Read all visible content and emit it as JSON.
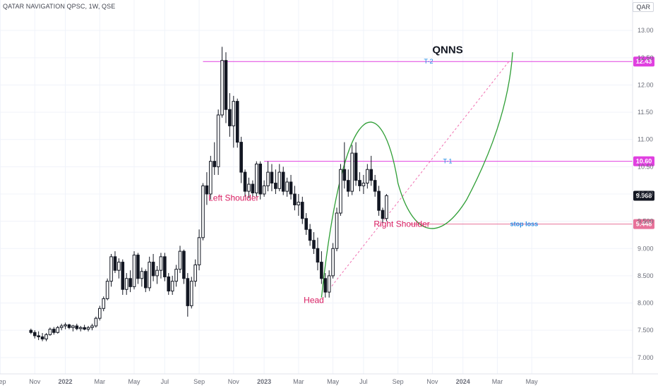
{
  "header": {
    "title": "QATAR NAVIGATION QPSC, 1W, QSE",
    "currency": "QAR"
  },
  "chart_data": {
    "type": "candlestick",
    "ylim": [
      6.7,
      13.3
    ],
    "y_ticks": [
      {
        "v": 7.0,
        "label": "7.000"
      },
      {
        "v": 7.5,
        "label": "7.500"
      },
      {
        "v": 8.0,
        "label": "8.000"
      },
      {
        "v": 8.5,
        "label": "8.500"
      },
      {
        "v": 9.0,
        "label": "9.000"
      },
      {
        "v": 9.5,
        "label": "9.500"
      },
      {
        "v": 10.0,
        "label": "10.00"
      },
      {
        "v": 10.5,
        "label": "10.50"
      },
      {
        "v": 11.0,
        "label": "11.00"
      },
      {
        "v": 11.5,
        "label": "11.50"
      },
      {
        "v": 12.0,
        "label": "12.00"
      },
      {
        "v": 12.5,
        "label": "12.50"
      },
      {
        "v": 13.0,
        "label": "13.00"
      }
    ],
    "x_ticks": [
      {
        "i": 0,
        "label": "Sep"
      },
      {
        "i": 9,
        "label": "Nov"
      },
      {
        "i": 17,
        "label": "2022"
      },
      {
        "i": 26,
        "label": "Mar"
      },
      {
        "i": 35,
        "label": "May"
      },
      {
        "i": 43,
        "label": "Jul"
      },
      {
        "i": 52,
        "label": "Sep"
      },
      {
        "i": 61,
        "label": "Nov"
      },
      {
        "i": 69,
        "label": "2023"
      },
      {
        "i": 78,
        "label": "Mar"
      },
      {
        "i": 87,
        "label": "May"
      },
      {
        "i": 95,
        "label": "Jul"
      },
      {
        "i": 104,
        "label": "Sep"
      },
      {
        "i": 113,
        "label": "Nov"
      },
      {
        "i": 121,
        "label": "2024"
      },
      {
        "i": 130,
        "label": "Mar"
      },
      {
        "i": 139,
        "label": "May"
      }
    ],
    "candles": [
      [
        7.5,
        7.53,
        7.43,
        7.46
      ],
      [
        7.46,
        7.5,
        7.35,
        7.4
      ],
      [
        7.4,
        7.48,
        7.32,
        7.38
      ],
      [
        7.38,
        7.45,
        7.3,
        7.34
      ],
      [
        7.34,
        7.45,
        7.3,
        7.42
      ],
      [
        7.42,
        7.55,
        7.4,
        7.52
      ],
      [
        7.52,
        7.56,
        7.42,
        7.46
      ],
      [
        7.46,
        7.58,
        7.44,
        7.55
      ],
      [
        7.55,
        7.62,
        7.5,
        7.58
      ],
      [
        7.58,
        7.64,
        7.52,
        7.6
      ],
      [
        7.6,
        7.62,
        7.52,
        7.55
      ],
      [
        7.55,
        7.6,
        7.48,
        7.58
      ],
      [
        7.58,
        7.62,
        7.5,
        7.53
      ],
      [
        7.53,
        7.58,
        7.48,
        7.55
      ],
      [
        7.55,
        7.6,
        7.5,
        7.52
      ],
      [
        7.52,
        7.58,
        7.48,
        7.55
      ],
      [
        7.55,
        7.62,
        7.5,
        7.58
      ],
      [
        7.58,
        7.75,
        7.55,
        7.72
      ],
      [
        7.72,
        7.95,
        7.68,
        7.9
      ],
      [
        7.9,
        8.12,
        7.85,
        8.08
      ],
      [
        8.08,
        8.45,
        8.05,
        8.4
      ],
      [
        8.4,
        8.9,
        8.3,
        8.85
      ],
      [
        8.85,
        8.95,
        8.55,
        8.6
      ],
      [
        8.6,
        8.82,
        8.45,
        8.75
      ],
      [
        8.75,
        8.8,
        8.15,
        8.25
      ],
      [
        8.25,
        8.55,
        8.15,
        8.45
      ],
      [
        8.45,
        8.6,
        8.2,
        8.3
      ],
      [
        8.3,
        8.95,
        8.25,
        8.88
      ],
      [
        8.88,
        8.92,
        8.35,
        8.45
      ],
      [
        8.45,
        8.65,
        8.3,
        8.58
      ],
      [
        8.58,
        8.62,
        8.2,
        8.28
      ],
      [
        8.28,
        8.85,
        8.22,
        8.75
      ],
      [
        8.75,
        8.9,
        8.4,
        8.5
      ],
      [
        8.5,
        8.68,
        8.35,
        8.6
      ],
      [
        8.6,
        8.92,
        8.45,
        8.85
      ],
      [
        8.85,
        8.92,
        8.4,
        8.48
      ],
      [
        8.48,
        8.55,
        8.15,
        8.22
      ],
      [
        8.22,
        8.5,
        8.15,
        8.4
      ],
      [
        8.4,
        8.7,
        8.3,
        8.62
      ],
      [
        8.62,
        9.05,
        8.55,
        8.95
      ],
      [
        8.95,
        8.98,
        8.35,
        8.45
      ],
      [
        8.45,
        8.55,
        7.75,
        7.95
      ],
      [
        7.95,
        8.48,
        7.9,
        8.4
      ],
      [
        8.4,
        8.8,
        8.3,
        8.7
      ],
      [
        8.7,
        9.35,
        8.6,
        9.2
      ],
      [
        9.2,
        10.2,
        9.15,
        10.15
      ],
      [
        10.15,
        10.4,
        9.8,
        10.0
      ],
      [
        10.0,
        10.7,
        9.9,
        10.6
      ],
      [
        10.6,
        10.95,
        10.35,
        10.5
      ],
      [
        10.5,
        11.55,
        10.35,
        11.45
      ],
      [
        11.45,
        12.7,
        11.4,
        12.45
      ],
      [
        12.45,
        12.6,
        11.3,
        11.55
      ],
      [
        11.55,
        11.85,
        11.05,
        11.25
      ],
      [
        11.25,
        11.8,
        10.85,
        11.7
      ],
      [
        11.7,
        11.75,
        10.85,
        10.95
      ],
      [
        10.95,
        11.05,
        10.2,
        10.4
      ],
      [
        10.4,
        10.45,
        9.95,
        10.05
      ],
      [
        10.05,
        10.3,
        9.92,
        10.18
      ],
      [
        10.18,
        10.25,
        9.95,
        10.02
      ],
      [
        10.02,
        10.6,
        9.95,
        10.55
      ],
      [
        10.55,
        10.6,
        9.9,
        10.0
      ],
      [
        10.0,
        10.25,
        9.95,
        10.15
      ],
      [
        10.15,
        10.6,
        10.05,
        10.4
      ],
      [
        10.4,
        10.55,
        10.05,
        10.2
      ],
      [
        10.2,
        10.45,
        10.0,
        10.1
      ],
      [
        10.1,
        10.55,
        10.05,
        10.4
      ],
      [
        10.4,
        10.5,
        9.98,
        10.05
      ],
      [
        10.05,
        10.3,
        9.95,
        10.22
      ],
      [
        10.22,
        10.35,
        9.9,
        10.0
      ],
      [
        10.0,
        10.15,
        9.7,
        9.8
      ],
      [
        9.8,
        10.0,
        9.6,
        9.85
      ],
      [
        9.85,
        9.95,
        9.45,
        9.55
      ],
      [
        9.55,
        9.65,
        9.25,
        9.35
      ],
      [
        9.35,
        9.45,
        9.05,
        9.15
      ],
      [
        9.15,
        9.3,
        8.9,
        9.0
      ],
      [
        9.0,
        9.2,
        8.6,
        8.75
      ],
      [
        8.75,
        8.95,
        8.35,
        8.45
      ],
      [
        8.45,
        8.55,
        8.1,
        8.2
      ],
      [
        8.2,
        8.6,
        8.1,
        8.5
      ],
      [
        8.5,
        9.1,
        8.45,
        9.0
      ],
      [
        9.0,
        9.75,
        8.95,
        9.65
      ],
      [
        9.65,
        10.55,
        9.6,
        10.45
      ],
      [
        10.45,
        10.95,
        10.1,
        10.25
      ],
      [
        10.25,
        10.45,
        9.95,
        10.05
      ],
      [
        10.05,
        10.9,
        9.98,
        10.75
      ],
      [
        10.75,
        10.95,
        10.15,
        10.25
      ],
      [
        10.25,
        10.4,
        10.05,
        10.15
      ],
      [
        10.15,
        10.35,
        10.0,
        10.2
      ],
      [
        10.2,
        10.55,
        10.1,
        10.45
      ],
      [
        10.45,
        10.7,
        10.15,
        10.25
      ],
      [
        10.25,
        10.35,
        9.95,
        10.05
      ],
      [
        10.05,
        10.15,
        9.6,
        9.7
      ],
      [
        9.7,
        9.75,
        9.45,
        9.55
      ],
      [
        9.55,
        10.0,
        9.5,
        9.97
      ]
    ],
    "x_index_offset": 8,
    "levels": [
      {
        "label": "T-2",
        "value": 12.43,
        "price_label": "12.43"
      },
      {
        "label": "T-1",
        "value": 10.6,
        "price_label": "10.60"
      },
      {
        "label": "stop loss",
        "value": 9.448,
        "price_label": "9.448"
      }
    ],
    "last_price": {
      "value": 9.968,
      "label": "9.968"
    },
    "annotations": [
      {
        "text": "QNNS",
        "i": 117,
        "v": 12.58,
        "style": "title"
      },
      {
        "text": "Left Shoulder",
        "i": 61,
        "v": 9.88,
        "style": "pink"
      },
      {
        "text": "Head",
        "i": 82,
        "v": 8.0,
        "style": "pink"
      },
      {
        "text": "Right Shoulder",
        "i": 105,
        "v": 9.4,
        "style": "pink"
      }
    ]
  },
  "colors": {
    "candle": "#131722",
    "grid": "#f0f3fa",
    "axis_text": "#6a6d78",
    "level": "#e040e0",
    "label_pink": "#d81b60",
    "label_blue": "#1e88e5",
    "curve": "#2e9e35",
    "projection": "#f06fb0"
  }
}
